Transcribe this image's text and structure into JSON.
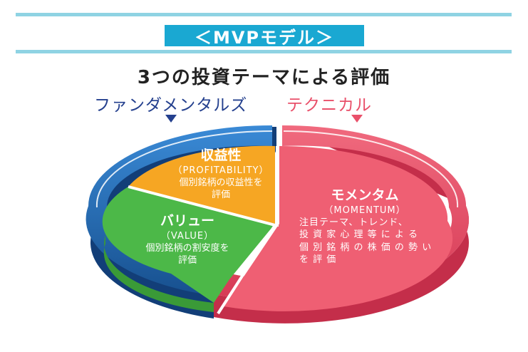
{
  "header": {
    "banner": "＜MVPモデル＞",
    "headline": "3つの投資テーマによる評価"
  },
  "categories": {
    "left": "ファンダメンタルズ",
    "right": "テクニカル"
  },
  "segments": {
    "profitability": {
      "title": "収益性",
      "english": "（PROFITABILITY）",
      "desc_lines": [
        "個別銘柄の収益性を",
        "評価"
      ],
      "color": "#f6a623"
    },
    "value": {
      "title": "バリュー",
      "english": "（VALUE）",
      "desc_lines": [
        "個別銘柄の割安度を",
        "評価"
      ],
      "color": "#4cb848"
    },
    "momentum": {
      "title": "モメンタム",
      "english": "（MOMENTUM）",
      "desc_lines": [
        "注目テーマ、トレンド、",
        "投 資 家 心 理 等 に よ る",
        "個 別 銘 柄 の 株 価 の 勢 い",
        "を 評 価"
      ],
      "color": "#ef5f73"
    }
  },
  "colors": {
    "rule": "#8fd3e3",
    "banner": "#1aa8d2",
    "fundamentals": "#24408e",
    "technical": "#e9506a",
    "blue_ring": "#1f6fc0",
    "red_ring": "#e9506a"
  }
}
